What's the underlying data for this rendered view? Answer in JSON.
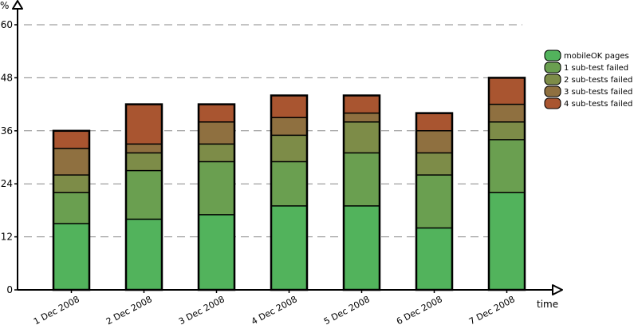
{
  "chart_data": {
    "type": "bar",
    "stacked": true,
    "title": "",
    "xlabel": "time",
    "ylabel": "%",
    "ylim": [
      0,
      60
    ],
    "yticks": [
      0,
      12,
      24,
      36,
      48,
      60
    ],
    "grid": "horizontal dashed",
    "legend_position": "top-right",
    "categories": [
      "1 Dec 2008",
      "2 Dec 2008",
      "3 Dec 2008",
      "4 Dec 2008",
      "5 Dec 2008",
      "6 Dec 2008",
      "7 Dec 2008"
    ],
    "series": [
      {
        "name": "mobileOK pages",
        "color": "#52b35c",
        "values": [
          15,
          16,
          17,
          19,
          19,
          14,
          22
        ]
      },
      {
        "name": "1 sub-test failed",
        "color": "#6a9f50",
        "values": [
          7,
          11,
          12,
          10,
          12,
          12,
          12
        ]
      },
      {
        "name": "2 sub-tests failed",
        "color": "#7d8c48",
        "values": [
          4,
          4,
          4,
          6,
          7,
          5,
          4
        ]
      },
      {
        "name": "3 sub-tests failed",
        "color": "#8f7040",
        "values": [
          6,
          2,
          5,
          4,
          2,
          5,
          4
        ]
      },
      {
        "name": "4 sub-tests failed",
        "color": "#a95530",
        "values": [
          4,
          9,
          4,
          5,
          4,
          4,
          6
        ]
      }
    ]
  }
}
